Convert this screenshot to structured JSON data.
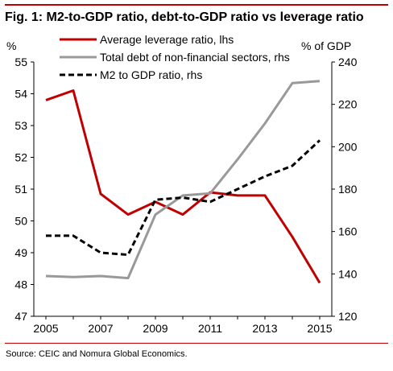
{
  "figure": {
    "title": "Fig. 1: M2-to-GDP ratio, debt-to-GDP ratio vs leverage ratio",
    "source": "Source: CEIC and Nomura Global Economics."
  },
  "chart_data": {
    "type": "line",
    "x": [
      2005,
      2006,
      2007,
      2008,
      2009,
      2010,
      2011,
      2012,
      2013,
      2014,
      2015
    ],
    "x_tick_labels": [
      "2005",
      "2007",
      "2009",
      "2011",
      "2013",
      "2015"
    ],
    "left_axis": {
      "unit_label": "%",
      "ylim": [
        47,
        55
      ],
      "ticks": [
        47,
        48,
        49,
        50,
        51,
        52,
        53,
        54,
        55
      ]
    },
    "right_axis": {
      "unit_label": "% of GDP",
      "ylim": [
        120,
        240
      ],
      "ticks": [
        120,
        140,
        160,
        180,
        200,
        220,
        240
      ]
    },
    "grid": false,
    "legend_position": "top-left",
    "series": [
      {
        "name": "Average leverage ratio, lhs",
        "axis": "left",
        "color": "#c00000",
        "style": "solid",
        "x": [
          2005,
          2006,
          2007,
          2008,
          2009,
          2010,
          2011,
          2012,
          2013,
          2014,
          2015
        ],
        "values": [
          53.8,
          54.1,
          50.85,
          50.2,
          50.6,
          50.2,
          50.9,
          50.8,
          50.8,
          49.5,
          48.05
        ]
      },
      {
        "name": "Total debt of non-financial sectors, rhs",
        "axis": "right",
        "color": "#999999",
        "style": "solid",
        "x": [
          2005,
          2006,
          2007,
          2008,
          2009,
          2010,
          2011,
          2012,
          2013,
          2014,
          2015
        ],
        "values": [
          139,
          138.5,
          139,
          138,
          168,
          177,
          178,
          194,
          211,
          230,
          231
        ]
      },
      {
        "name": "M2 to GDP ratio, rhs",
        "axis": "right",
        "color": "#000000",
        "style": "dashed",
        "x": [
          2005,
          2006,
          2007,
          2008,
          2009,
          2010,
          2011,
          2012,
          2013,
          2014,
          2015
        ],
        "values": [
          158,
          158,
          150,
          149,
          175,
          176,
          174,
          180,
          186,
          191,
          203
        ]
      }
    ]
  }
}
